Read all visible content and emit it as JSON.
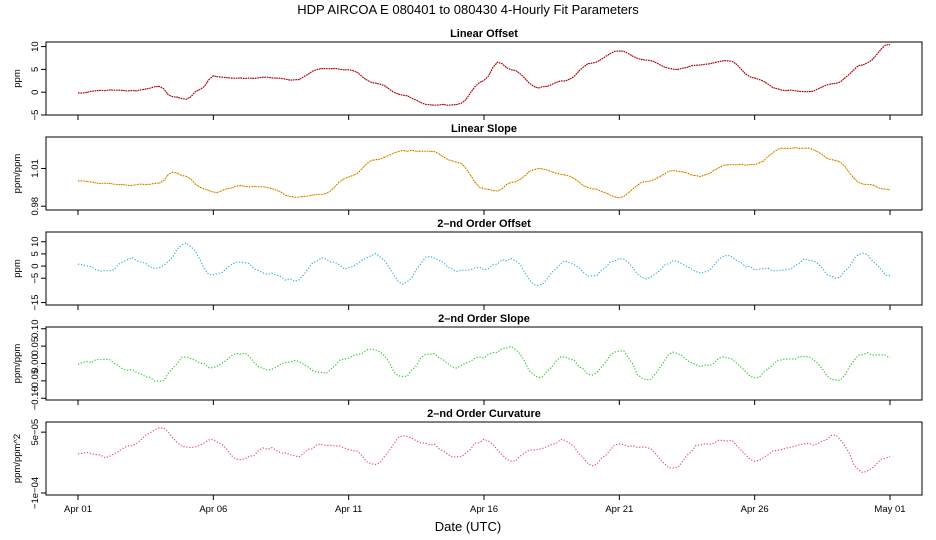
{
  "chart_data": {
    "type": "line",
    "title": "HDP   AIRCOA E   080401 to 080430   4-Hourly Fit Parameters",
    "xlabel": "Date (UTC)",
    "x_range_days": [
      1,
      31
    ],
    "x_ticks": [
      {
        "day": 1,
        "label": "Apr 01"
      },
      {
        "day": 6,
        "label": "Apr 06"
      },
      {
        "day": 11,
        "label": "Apr 11"
      },
      {
        "day": 16,
        "label": "Apr 16"
      },
      {
        "day": 21,
        "label": "Apr 21"
      },
      {
        "day": 26,
        "label": "Apr 26"
      },
      {
        "day": 31,
        "label": "May 01"
      }
    ],
    "panels": [
      {
        "title": "Linear Offset",
        "ylabel": "ppm",
        "color": "#cc0000",
        "ylim": [
          -5,
          11
        ],
        "yticks": [
          -5,
          0,
          5,
          10
        ],
        "ytick_labels": [
          "−5",
          "0",
          "5",
          "10"
        ],
        "series": {
          "name": "Linear Offset",
          "x": [
            1,
            2,
            3,
            4,
            4.5,
            5,
            5.5,
            6,
            7,
            8,
            9,
            10,
            11,
            12,
            13,
            14,
            15,
            16,
            16.5,
            17,
            18,
            19,
            20,
            21,
            22,
            23,
            24,
            25,
            26,
            27,
            28,
            29,
            30,
            31
          ],
          "y": [
            -0.2,
            0.4,
            0.3,
            1.2,
            -1.0,
            -1.5,
            0.5,
            3.5,
            3.0,
            3.2,
            2.7,
            5.2,
            5.0,
            2.0,
            -0.7,
            -2.8,
            -2.8,
            2.5,
            6.5,
            5.0,
            1.0,
            2.5,
            6.5,
            9.0,
            7.0,
            5.0,
            6.0,
            7.0,
            3.0,
            0.5,
            0.2,
            2.0,
            6.0,
            10.5
          ]
        }
      },
      {
        "title": "Linear Slope",
        "ylabel": "ppm/ppm",
        "color": "#ffa500",
        "ylim": [
          0.977,
          1.035
        ],
        "yticks": [
          0.98,
          1.01
        ],
        "ytick_labels": [
          "0.98",
          "1.01"
        ],
        "series": {
          "name": "Linear Slope",
          "x": [
            1,
            2,
            3,
            4,
            4.5,
            5,
            5.5,
            6,
            7,
            8,
            9,
            10,
            11,
            12,
            13,
            14,
            15,
            16,
            16.5,
            17,
            18,
            19,
            20,
            21,
            22,
            23,
            24,
            25,
            26,
            27,
            28,
            29,
            30,
            31
          ],
          "y": [
            1.0,
            0.998,
            0.997,
            0.998,
            1.007,
            1.004,
            0.995,
            0.991,
            0.996,
            0.995,
            0.987,
            0.989,
            1.003,
            1.017,
            1.024,
            1.024,
            1.015,
            0.994,
            0.992,
            0.999,
            1.01,
            1.005,
            0.994,
            0.987,
            1.0,
            1.008,
            1.004,
            1.013,
            1.013,
            1.026,
            1.026,
            1.016,
            0.998,
            0.993
          ]
        }
      },
      {
        "title": "2–nd Order Offset",
        "ylabel": "ppm",
        "color": "#33aadd",
        "ylim": [
          -16,
          14
        ],
        "yticks": [
          -15,
          -5,
          0,
          5,
          10
        ],
        "ytick_labels": [
          "−15",
          "−5",
          "0",
          "5",
          "10"
        ],
        "series": {
          "name": "2nd Order Offset",
          "x": [
            1,
            2,
            3,
            4,
            5,
            6,
            7,
            8,
            9,
            10,
            11,
            12,
            13,
            14,
            15,
            16,
            17,
            18,
            19,
            20,
            21,
            22,
            23,
            24,
            25,
            26,
            27,
            28,
            29,
            30,
            31
          ],
          "y": [
            1,
            -2,
            3,
            -1,
            9,
            -4,
            2,
            -3,
            -6,
            3,
            -1,
            5,
            -7,
            4,
            -2,
            -1,
            3,
            -8,
            2,
            -4,
            3,
            -5,
            2,
            -3,
            4,
            -1,
            -2,
            3,
            -5,
            5,
            -4
          ]
        }
      },
      {
        "title": "2–nd Order Slope",
        "ylabel": "ppm/ppm",
        "color": "#22cc22",
        "ylim": [
          -0.105,
          0.105
        ],
        "yticks": [
          -0.1,
          -0.05,
          0.0,
          0.05,
          0.1
        ],
        "ytick_labels": [
          "−0.10",
          "−0.05",
          "0.00",
          "0.05",
          "0.10"
        ],
        "series": {
          "name": "2nd Order Slope",
          "x": [
            1,
            2,
            3,
            4,
            5,
            6,
            7,
            8,
            9,
            10,
            11,
            12,
            13,
            14,
            15,
            16,
            17,
            18,
            19,
            20,
            21,
            22,
            23,
            24,
            25,
            26,
            27,
            28,
            29,
            30,
            31
          ],
          "y": [
            0,
            0.01,
            -0.02,
            -0.05,
            0.02,
            -0.01,
            0.03,
            -0.02,
            0.01,
            -0.03,
            0.02,
            0.04,
            -0.04,
            0.03,
            -0.01,
            0.02,
            0.05,
            -0.04,
            0.02,
            -0.03,
            0.04,
            -0.05,
            0.03,
            -0.01,
            0.02,
            -0.04,
            0.01,
            0.02,
            -0.05,
            0.03,
            0.02
          ]
        }
      },
      {
        "title": "2–nd Order Curvature",
        "ylabel": "ppm/ppm^2",
        "color": "#ee4477",
        "ylim": [
          -0.000105,
          7.5e-05
        ],
        "yticks": [
          -0.0001,
          5e-05
        ],
        "ytick_labels": [
          "−1e−04",
          "5e−05"
        ],
        "series": {
          "name": "2nd Order Curvature",
          "x": [
            1,
            2,
            3,
            4,
            5,
            6,
            7,
            8,
            9,
            10,
            11,
            12,
            13,
            14,
            15,
            16,
            17,
            18,
            19,
            20,
            21,
            22,
            23,
            24,
            25,
            26,
            27,
            28,
            29,
            30,
            31
          ],
          "y": [
            0,
            -1e-05,
            2e-05,
            6e-05,
            1e-05,
            3e-05,
            -2e-05,
            1e-05,
            -1e-05,
            2e-05,
            1e-05,
            -3e-05,
            4e-05,
            2e-05,
            -1e-05,
            3e-05,
            -2e-05,
            1e-05,
            3e-05,
            -3e-05,
            2e-05,
            1e-05,
            -4e-05,
            2e-05,
            3e-05,
            -2e-05,
            1e-05,
            2e-05,
            4e-05,
            -5e-05,
            -1e-05
          ]
        }
      }
    ]
  }
}
